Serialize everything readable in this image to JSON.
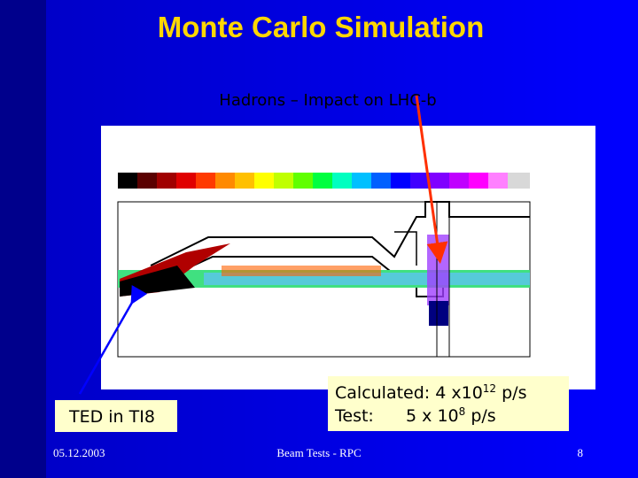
{
  "slide": {
    "title": "Monte Carlo Simulation",
    "subtitle": "Hadrons – Impact on LHC-b",
    "ted_label": "TED in TI8",
    "calculated": {
      "prefix": "Calculated: 4 x10",
      "exponent": "12",
      "suffix": " p/s"
    },
    "test": {
      "prefix": "Test:      5 x 10",
      "exponent": "8",
      "suffix": " p/s"
    },
    "footer": {
      "date": "05.12.2003",
      "center": "Beam Tests - RPC",
      "page": "8"
    }
  }
}
